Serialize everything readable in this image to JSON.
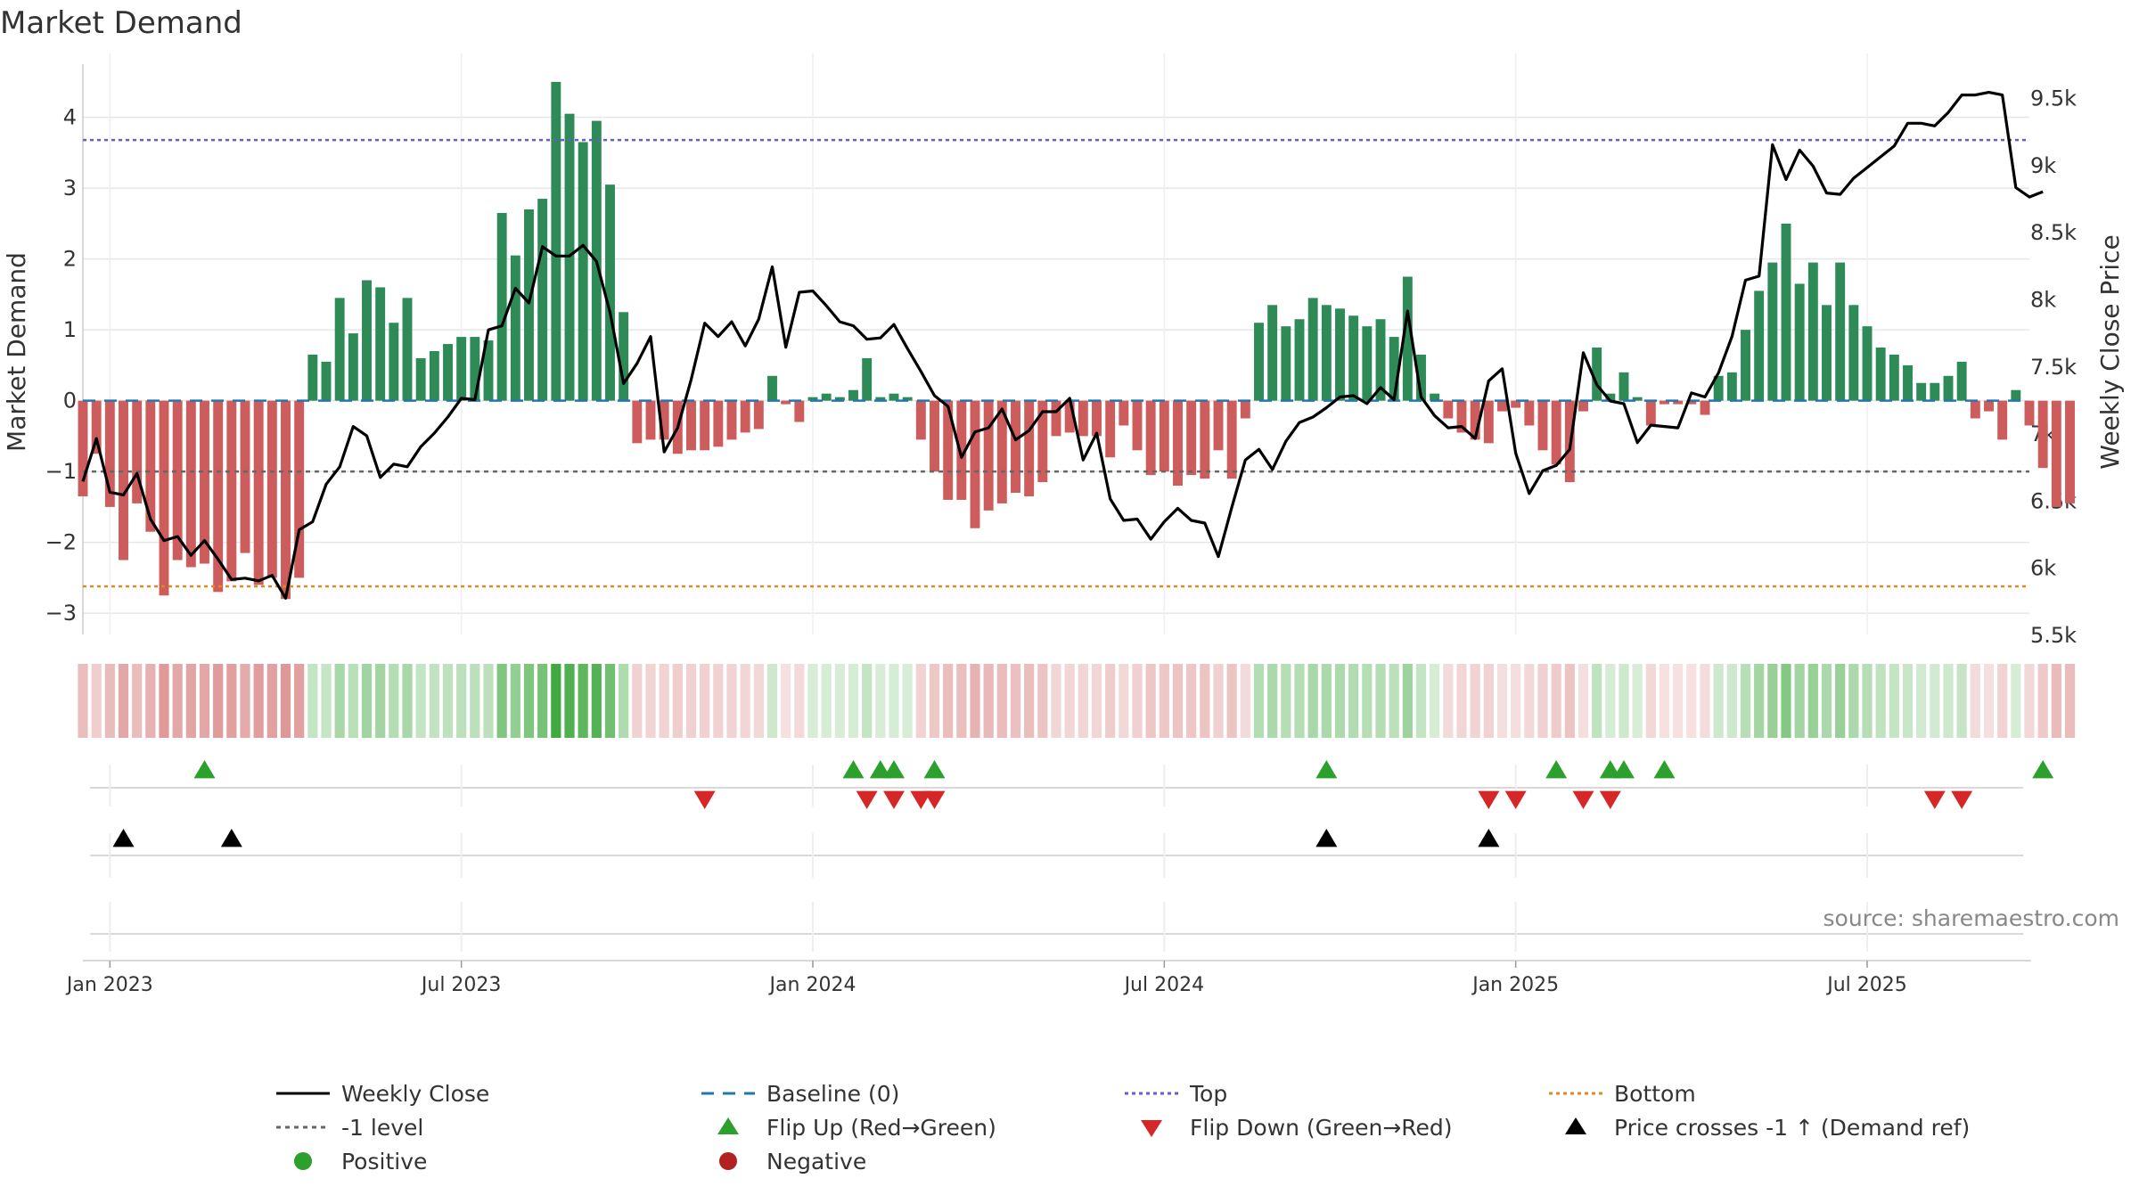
{
  "chart_data": {
    "type": "bar",
    "title": "Market Demand",
    "ylabel_left": "Market Demand",
    "ylabel_right": "Weekly Close Price",
    "source": "source: sharemaestro.com",
    "ylim_left": [
      -3.3,
      4.75
    ],
    "ylim_right": [
      5500,
      9750
    ],
    "y_ticks_left": [
      {
        "v": 4,
        "label": "4"
      },
      {
        "v": 3,
        "label": "3"
      },
      {
        "v": 2,
        "label": "2"
      },
      {
        "v": 1,
        "label": "1"
      },
      {
        "v": 0,
        "label": "0"
      },
      {
        "v": -1,
        "label": "−1"
      },
      {
        "v": -2,
        "label": "−2"
      },
      {
        "v": -3,
        "label": "−3"
      }
    ],
    "y_ticks_right": [
      {
        "v": 9500,
        "label": "9.5k"
      },
      {
        "v": 9000,
        "label": "9k"
      },
      {
        "v": 8500,
        "label": "8.5k"
      },
      {
        "v": 8000,
        "label": "8k"
      },
      {
        "v": 7500,
        "label": "7.5k"
      },
      {
        "v": 7000,
        "label": "7k"
      },
      {
        "v": 6500,
        "label": "6.5k"
      },
      {
        "v": 6000,
        "label": "6k"
      },
      {
        "v": 5500,
        "label": "5.5k"
      }
    ],
    "x_ticks": [
      {
        "week": 1,
        "label": "Jan 2023"
      },
      {
        "week": 27,
        "label": "Jul 2023"
      },
      {
        "week": 53,
        "label": "Jan 2024"
      },
      {
        "week": 79,
        "label": "Jul 2024"
      },
      {
        "week": 105,
        "label": "Jan 2025"
      },
      {
        "week": 131,
        "label": "Jul 2025"
      }
    ],
    "week_count": 145,
    "week_offset": -2,
    "top_level": 3.68,
    "bottom_level": -2.62,
    "ref_level": -1,
    "demand": [
      -1.35,
      -0.75,
      -1.5,
      -2.25,
      -1.45,
      -1.85,
      -2.75,
      -2.25,
      -2.35,
      -2.3,
      -2.7,
      -2.55,
      -2.15,
      -2.6,
      -2.5,
      -2.8,
      -2.5,
      0.65,
      0.55,
      1.45,
      0.95,
      1.7,
      1.6,
      1.1,
      1.45,
      0.6,
      0.7,
      0.8,
      0.9,
      0.9,
      0.85,
      2.65,
      2.05,
      2.7,
      2.85,
      4.5,
      4.05,
      3.65,
      3.95,
      3.05,
      1.25,
      -0.6,
      -0.55,
      -0.55,
      -0.75,
      -0.7,
      -0.7,
      -0.65,
      -0.55,
      -0.45,
      -0.4,
      0.35,
      -0.05,
      -0.3,
      0.05,
      0.1,
      0.05,
      0.15,
      0.6,
      0.05,
      0.1,
      0.05,
      -0.55,
      -1.0,
      -1.4,
      -1.4,
      -1.8,
      -1.55,
      -1.45,
      -1.3,
      -1.35,
      -1.15,
      -0.5,
      -0.45,
      -0.5,
      -0.5,
      -0.8,
      -0.35,
      -0.7,
      -1.05,
      -1.0,
      -1.2,
      -1.05,
      -1.1,
      -0.7,
      -1.1,
      -0.25,
      1.1,
      1.35,
      1.05,
      1.15,
      1.45,
      1.35,
      1.3,
      1.2,
      1.05,
      1.15,
      0.9,
      1.75,
      0.65,
      0.1,
      -0.25,
      -0.45,
      -0.55,
      -0.6,
      -0.15,
      -0.1,
      -0.35,
      -0.7,
      -0.9,
      -1.15,
      -0.15,
      0.75,
      0.1,
      0.4,
      0.05,
      -0.35,
      -0.05,
      -0.05,
      -0.05,
      -0.2,
      0.35,
      0.4,
      1.0,
      1.55,
      1.95,
      2.5,
      1.65,
      1.95,
      1.35,
      1.95,
      1.35,
      1.05,
      0.75,
      0.65,
      0.5,
      0.25,
      0.25,
      0.35,
      0.55,
      -0.25,
      -0.15,
      -0.55,
      0.15,
      -0.35,
      -0.95,
      -1.5,
      -1.45
    ],
    "close": [
      6640,
      6960,
      6560,
      6540,
      6700,
      6360,
      6200,
      6230,
      6090,
      6200,
      6060,
      5910,
      5920,
      5900,
      5940,
      5770,
      6280,
      6340,
      6620,
      6750,
      7050,
      6980,
      6670,
      6770,
      6750,
      6900,
      7000,
      7120,
      7260,
      7250,
      7770,
      7800,
      8080,
      7970,
      8390,
      8320,
      8320,
      8400,
      8280,
      7900,
      7370,
      7520,
      7720,
      6860,
      7040,
      7400,
      7820,
      7720,
      7830,
      7650,
      7850,
      8240,
      7640,
      8050,
      8060,
      7950,
      7830,
      7800,
      7700,
      7710,
      7810,
      7630,
      7460,
      7280,
      7200,
      6820,
      7010,
      7040,
      7180,
      6950,
      7020,
      7160,
      7160,
      7260,
      6800,
      7000,
      6510,
      6350,
      6360,
      6210,
      6340,
      6440,
      6350,
      6330,
      6080,
      6450,
      6800,
      6880,
      6730,
      6940,
      7080,
      7120,
      7190,
      7270,
      7280,
      7220,
      7340,
      7250,
      7910,
      7270,
      7130,
      7040,
      7050,
      6960,
      7390,
      7480,
      6850,
      6550,
      6720,
      6760,
      6880,
      7600,
      7360,
      7240,
      7220,
      6930,
      7060,
      7050,
      7040,
      7300,
      7270,
      7450,
      7720,
      8140,
      8170,
      9150,
      8890,
      9110,
      8990,
      8790,
      8780,
      8900,
      8980,
      9060,
      9140,
      9310,
      9310,
      9290,
      9390,
      9520,
      9520,
      9540,
      9520,
      8830,
      8760,
      8800
    ],
    "flip_up_weeks": [
      8,
      56,
      58,
      59,
      62,
      91,
      108,
      112,
      113,
      116,
      144
    ],
    "flip_down_weeks": [
      45,
      57,
      59,
      61,
      62,
      103,
      105,
      110,
      112,
      136,
      138
    ],
    "cross_weeks": [
      2,
      10,
      91,
      103
    ],
    "legend": [
      {
        "key": "weekly-close",
        "label": "Weekly Close"
      },
      {
        "key": "baseline",
        "label": "Baseline (0)"
      },
      {
        "key": "top",
        "label": "Top"
      },
      {
        "key": "bottom",
        "label": "Bottom"
      },
      {
        "key": "ref",
        "label": "-1 level"
      },
      {
        "key": "flip-up",
        "label": "Flip Up (Red→Green)"
      },
      {
        "key": "flip-down",
        "label": "Flip Down (Green→Red)"
      },
      {
        "key": "cross",
        "label": "Price crosses -1 ↑ (Demand ref)"
      },
      {
        "key": "positive",
        "label": "Positive"
      },
      {
        "key": "negative",
        "label": "Negative"
      }
    ],
    "colors": {
      "positive": "#2e8b57",
      "negative": "#cd5c5c",
      "close": "#000000",
      "baseline": "#1f77b4",
      "top": "#6a5acd",
      "bottom": "#e08a1e",
      "ref": "#666666",
      "flip_up": "#2ca02c",
      "flip_down": "#d62728",
      "cross": "#000000",
      "positive_dot": "#2ca02c",
      "negative_dot": "#b22222",
      "grid": "#e6e6e6",
      "axis": "#cccccc"
    }
  }
}
